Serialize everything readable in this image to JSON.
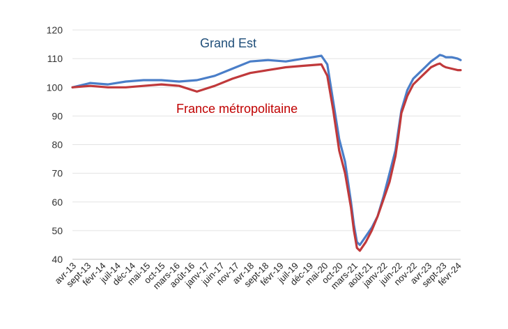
{
  "chart_data": {
    "type": "line",
    "title": "",
    "xlabel": "",
    "ylabel": "",
    "ylim": [
      40,
      120
    ],
    "yticks": [
      40,
      50,
      60,
      70,
      80,
      90,
      100,
      110,
      120
    ],
    "grid": "horizontal",
    "legend": "inline labels",
    "x_tick_labels": [
      "avr-13",
      "sept-13",
      "févr-14",
      "juil-14",
      "déc-14",
      "mai-15",
      "oct-15",
      "mars-16",
      "août-16",
      "janv-17",
      "juin-17",
      "nov-17",
      "avr-18",
      "sept-18",
      "févr-19",
      "juil-19",
      "déc-19",
      "mai-20",
      "oct-20",
      "mars-21",
      "août-21",
      "janv-22",
      "juin-22",
      "nov-22",
      "avr-23",
      "sept-23",
      "févr-24"
    ],
    "x_tick_month_index": [
      0,
      5,
      10,
      15,
      20,
      25,
      30,
      35,
      40,
      45,
      50,
      55,
      60,
      65,
      70,
      75,
      80,
      85,
      90,
      95,
      100,
      105,
      110,
      115,
      120,
      125,
      130
    ],
    "x_start": "avr-13",
    "x_end": "févr-24",
    "series": [
      {
        "name": "Grand Est",
        "color": "#4a7ec8",
        "label_color": "#1f4e79",
        "points": [
          [
            0,
            100
          ],
          [
            6,
            101.5
          ],
          [
            12,
            101
          ],
          [
            18,
            102
          ],
          [
            24,
            102.5
          ],
          [
            30,
            102.5
          ],
          [
            36,
            102
          ],
          [
            42,
            102.5
          ],
          [
            48,
            104
          ],
          [
            54,
            106.5
          ],
          [
            60,
            109
          ],
          [
            66,
            109.5
          ],
          [
            72,
            109
          ],
          [
            78,
            110
          ],
          [
            84,
            111
          ],
          [
            86,
            108
          ],
          [
            88,
            95
          ],
          [
            90,
            82
          ],
          [
            92,
            74
          ],
          [
            94,
            60
          ],
          [
            95,
            52
          ],
          [
            96,
            46
          ],
          [
            97,
            45
          ],
          [
            99,
            48
          ],
          [
            101,
            51
          ],
          [
            103,
            55
          ],
          [
            105,
            62
          ],
          [
            107,
            70
          ],
          [
            109,
            78
          ],
          [
            110,
            85
          ],
          [
            111,
            92
          ],
          [
            113,
            99
          ],
          [
            115,
            103
          ],
          [
            117,
            105
          ],
          [
            119,
            107
          ],
          [
            121,
            109
          ],
          [
            123,
            110.5
          ],
          [
            124,
            111.3
          ],
          [
            125,
            111
          ],
          [
            126,
            110.5
          ],
          [
            128,
            110.5
          ],
          [
            130,
            110
          ],
          [
            131,
            109.5
          ]
        ]
      },
      {
        "name": "France métropolitaine",
        "color": "#c0393b",
        "label_color": "#c00000",
        "points": [
          [
            0,
            100
          ],
          [
            6,
            100.5
          ],
          [
            12,
            100
          ],
          [
            18,
            100
          ],
          [
            24,
            100.5
          ],
          [
            30,
            101
          ],
          [
            36,
            100.5
          ],
          [
            42,
            98.5
          ],
          [
            48,
            100.5
          ],
          [
            54,
            103
          ],
          [
            60,
            105
          ],
          [
            66,
            106
          ],
          [
            72,
            107
          ],
          [
            78,
            107.5
          ],
          [
            84,
            108
          ],
          [
            86,
            104
          ],
          [
            88,
            92
          ],
          [
            90,
            78
          ],
          [
            92,
            70
          ],
          [
            94,
            58
          ],
          [
            95,
            50
          ],
          [
            96,
            44
          ],
          [
            97,
            43
          ],
          [
            99,
            46
          ],
          [
            101,
            50
          ],
          [
            103,
            55
          ],
          [
            105,
            61
          ],
          [
            107,
            67
          ],
          [
            109,
            76
          ],
          [
            110,
            83
          ],
          [
            111,
            91
          ],
          [
            113,
            97
          ],
          [
            115,
            101
          ],
          [
            117,
            103
          ],
          [
            119,
            105
          ],
          [
            121,
            107
          ],
          [
            123,
            108
          ],
          [
            124,
            108.3
          ],
          [
            125,
            107.5
          ],
          [
            126,
            107
          ],
          [
            128,
            106.5
          ],
          [
            130,
            106
          ],
          [
            131,
            106
          ]
        ]
      }
    ]
  }
}
